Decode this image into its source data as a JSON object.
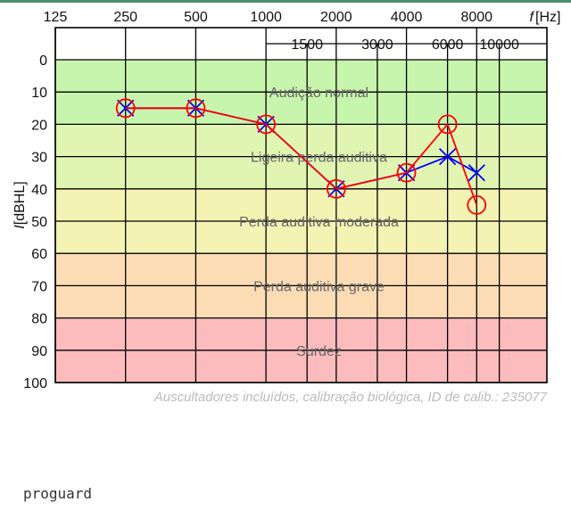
{
  "chart_data": {
    "type": "line",
    "x_axis_unit": "[Hz]",
    "x_axis_symbol": "f",
    "y_axis_label": "[dBHL]",
    "y_axis_symbol": "I",
    "primary_frequencies": [
      "125",
      "250",
      "500",
      "1000",
      "2000",
      "4000",
      "8000"
    ],
    "secondary_frequencies": [
      "1500",
      "3000",
      "6000",
      "10000"
    ],
    "y_ticks": [
      "0",
      "10",
      "20",
      "30",
      "40",
      "50",
      "60",
      "70",
      "80",
      "90",
      "100"
    ],
    "ylim": [
      0,
      100
    ],
    "zones": [
      {
        "label": "Audição normal",
        "from": 0,
        "to": 20,
        "color": "#c8f5ad"
      },
      {
        "label": "Ligeira perda auditiva",
        "from": 20,
        "to": 40,
        "color": "#e1f5b3"
      },
      {
        "label": "Perda auditiva moderada",
        "from": 40,
        "to": 60,
        "color": "#f4f3b4"
      },
      {
        "label": "Perda auditiva grave",
        "from": 60,
        "to": 80,
        "color": "#fcdcb5"
      },
      {
        "label": "Surdez",
        "from": 80,
        "to": 100,
        "color": "#fcbcbe"
      }
    ],
    "series": [
      {
        "marker": "circle",
        "color": "#ff0000",
        "points": [
          {
            "x": 250,
            "y": 15
          },
          {
            "x": 500,
            "y": 15
          },
          {
            "x": 1000,
            "y": 20
          },
          {
            "x": 2000,
            "y": 40
          },
          {
            "x": 4000,
            "y": 35
          },
          {
            "x": 6000,
            "y": 20
          },
          {
            "x": 8000,
            "y": 45
          }
        ]
      },
      {
        "marker": "cross",
        "color": "#0000ff",
        "points": [
          {
            "x": 250,
            "y": 15
          },
          {
            "x": 500,
            "y": 15
          },
          {
            "x": 1000,
            "y": 20
          },
          {
            "x": 2000,
            "y": 40
          },
          {
            "x": 4000,
            "y": 35
          },
          {
            "x": 6000,
            "y": 30
          },
          {
            "x": 8000,
            "y": 35
          }
        ]
      }
    ],
    "annotation": "Auscultadores incluídos, calibração biológica, ID de calib.: 235077"
  },
  "footer": {
    "text": "proguard"
  }
}
